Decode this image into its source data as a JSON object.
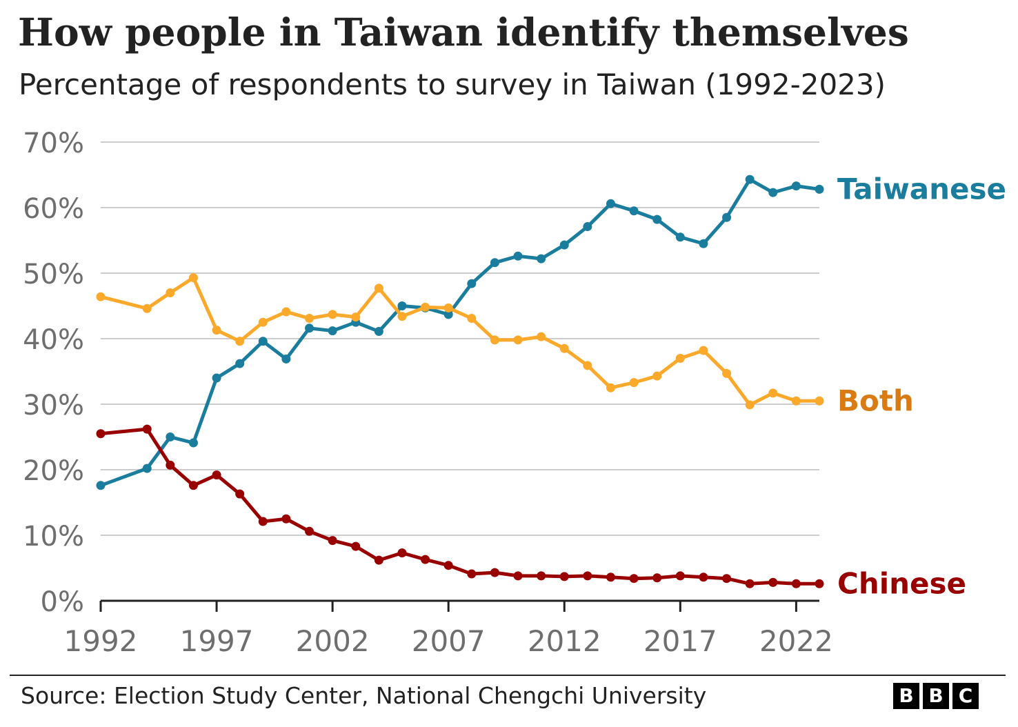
{
  "chart_data": {
    "type": "line",
    "title": "How people in Taiwan identify themselves",
    "subtitle": "Percentage of respondents to survey in Taiwan (1992-2023)",
    "x_ticks": [
      "1992",
      "1997",
      "2002",
      "2007",
      "2012",
      "2017",
      "2022"
    ],
    "y_ticks": [
      "0%",
      "10%",
      "20%",
      "30%",
      "40%",
      "50%",
      "60%",
      "70%"
    ],
    "xlim": [
      1992,
      2023
    ],
    "ylim": [
      0,
      70
    ],
    "grid": true,
    "x": [
      1992,
      1994,
      1995,
      1996,
      1997,
      1998,
      1999,
      2000,
      2001,
      2002,
      2003,
      2004,
      2005,
      2006,
      2007,
      2008,
      2009,
      2010,
      2011,
      2012,
      2013,
      2014,
      2015,
      2016,
      2017,
      2018,
      2019,
      2020,
      2021,
      2022,
      2023
    ],
    "series": [
      {
        "name": "Taiwanese",
        "color": "#1a7d9e",
        "values": [
          17.6,
          20.2,
          25.0,
          24.1,
          34.0,
          36.2,
          39.6,
          36.9,
          41.6,
          41.2,
          42.5,
          41.1,
          45.0,
          44.7,
          43.7,
          48.4,
          51.6,
          52.6,
          52.2,
          54.3,
          57.1,
          60.6,
          59.5,
          58.2,
          55.5,
          54.5,
          58.5,
          64.3,
          62.3,
          63.3,
          62.8
        ]
      },
      {
        "name": "Both",
        "color": "#fba92b",
        "label_color": "#d97a13",
        "values": [
          46.4,
          44.6,
          47.0,
          49.3,
          41.3,
          39.6,
          42.5,
          44.1,
          43.1,
          43.7,
          43.3,
          47.7,
          43.4,
          44.8,
          44.7,
          43.1,
          39.8,
          39.8,
          40.3,
          38.5,
          35.9,
          32.5,
          33.3,
          34.3,
          37.0,
          38.2,
          34.7,
          29.9,
          31.7,
          30.5,
          30.5
        ]
      },
      {
        "name": "Chinese",
        "color": "#990000",
        "values": [
          25.5,
          26.2,
          20.7,
          17.6,
          19.2,
          16.3,
          12.1,
          12.5,
          10.6,
          9.2,
          8.3,
          6.2,
          7.3,
          6.3,
          5.4,
          4.1,
          4.3,
          3.8,
          3.8,
          3.7,
          3.8,
          3.6,
          3.4,
          3.5,
          3.8,
          3.6,
          3.4,
          2.6,
          2.8,
          2.6,
          2.6
        ]
      }
    ],
    "source": "Source: Election Study Center, National Chengchi University"
  },
  "logo": {
    "letters": [
      "B",
      "B",
      "C"
    ]
  }
}
